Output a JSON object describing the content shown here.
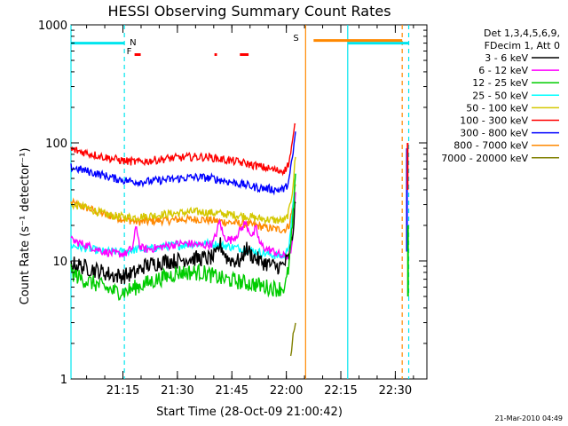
{
  "chart_data": {
    "type": "line",
    "title": "HESSI Observing Summary Count Rates",
    "xlabel": "Start Time (28-Oct-09 21:00:42)",
    "ylabel": "Count Rate (s⁻¹ detector⁻¹)",
    "x_unit": "minutes after 21:00:42",
    "x_range": [
      0,
      98
    ],
    "ylim": [
      1,
      1000
    ],
    "y_scale": "log",
    "grid": false,
    "x_ticks": [
      {
        "x": 14.3,
        "label": "21:15"
      },
      {
        "x": 29.3,
        "label": "21:30"
      },
      {
        "x": 44.3,
        "label": "21:45"
      },
      {
        "x": 59.3,
        "label": "22:00"
      },
      {
        "x": 74.3,
        "label": "22:15"
      },
      {
        "x": 89.3,
        "label": "22:30"
      }
    ],
    "y_ticks": [
      {
        "y": 1,
        "label": "1"
      },
      {
        "y": 10,
        "label": "10"
      },
      {
        "y": 100,
        "label": "100"
      },
      {
        "y": 1000,
        "label": "1000"
      }
    ],
    "legend_title": "Det 1,3,4,5,6,9,",
    "legend_subtitle": "FDecim 1, Att 0",
    "legend_position": "right",
    "series": [
      {
        "name": "3 - 6 keV",
        "color": "#000000",
        "x": [
          0,
          3,
          6,
          9,
          12,
          15,
          18,
          20,
          23,
          26,
          29,
          32,
          35,
          38,
          40,
          41,
          43,
          45,
          47,
          48,
          50,
          52,
          54,
          56,
          58,
          60,
          61,
          62
        ],
        "y": [
          9.5,
          9,
          8.5,
          8,
          7.5,
          7.5,
          8,
          9,
          9.5,
          10,
          10,
          10.5,
          10.5,
          10.5,
          11,
          14,
          10.5,
          10,
          10,
          13,
          11,
          10,
          9.5,
          9,
          9,
          10.5,
          16,
          40
        ]
      },
      {
        "name": "6 - 12 keV",
        "color": "#ff00ff",
        "x": [
          0,
          3,
          6,
          9,
          12,
          15,
          17,
          18,
          19,
          21,
          24,
          27,
          30,
          33,
          36,
          39,
          40,
          41,
          42,
          44,
          46,
          48,
          50,
          51,
          52,
          54,
          56,
          58,
          60,
          61,
          62
        ],
        "y": [
          15,
          14,
          13,
          12,
          11.5,
          11.5,
          13,
          20,
          13,
          12.5,
          13,
          13.5,
          14,
          14,
          13.5,
          14,
          17,
          22,
          16,
          15,
          17,
          21,
          16,
          19,
          14,
          12.5,
          12,
          11,
          11,
          14,
          45
        ]
      },
      {
        "name": "12 - 25 keV",
        "color": "#00cc00",
        "x": [
          0,
          3,
          6,
          9,
          12,
          15,
          18,
          21,
          24,
          27,
          30,
          33,
          36,
          39,
          42,
          45,
          48,
          51,
          54,
          57,
          59,
          60,
          61,
          62
        ],
        "y": [
          8,
          7,
          6.5,
          6,
          5.5,
          5.5,
          6,
          6.5,
          7,
          7.5,
          8,
          8,
          8,
          7.5,
          7,
          6.8,
          6.5,
          6.3,
          6,
          5.8,
          6,
          9,
          20,
          60
        ]
      },
      {
        "name": "25 - 50 keV",
        "color": "#00ffff",
        "x": [
          0,
          3,
          6,
          9,
          12,
          15,
          18,
          21,
          24,
          27,
          30,
          33,
          36,
          39,
          42,
          45,
          48,
          51,
          54,
          57,
          59,
          60,
          61,
          62
        ],
        "y": [
          13.5,
          13,
          12.5,
          12,
          12,
          12,
          12.5,
          12.5,
          13,
          13.5,
          13.5,
          14,
          14,
          14,
          13.5,
          13,
          12.5,
          12,
          11.5,
          11,
          11,
          14,
          25,
          70
        ]
      },
      {
        "name": "50 - 100 keV",
        "color": "#d4c800",
        "x": [
          0,
          3,
          6,
          9,
          12,
          15,
          18,
          21,
          24,
          27,
          30,
          33,
          36,
          39,
          42,
          45,
          48,
          51,
          54,
          57,
          59,
          60,
          61,
          62
        ],
        "y": [
          30,
          29,
          27,
          25,
          24,
          23.5,
          23.5,
          24,
          24.5,
          25,
          25.5,
          26,
          26,
          25.5,
          25,
          24.5,
          24,
          23,
          22.5,
          22,
          22,
          26,
          40,
          90
        ]
      },
      {
        "name": "100 - 300 keV",
        "color": "#ff0000",
        "x": [
          0,
          3,
          6,
          9,
          12,
          15,
          18,
          21,
          24,
          27,
          30,
          33,
          36,
          39,
          42,
          45,
          48,
          51,
          54,
          57,
          59,
          60,
          61,
          62
        ],
        "y": [
          88,
          84,
          80,
          76,
          73,
          70,
          69,
          70,
          72,
          74,
          75,
          76,
          76,
          75,
          72,
          70,
          67,
          64,
          61,
          58,
          59,
          68,
          100,
          170
        ]
      },
      {
        "name": "300 - 800 keV",
        "color": "#0000ff",
        "x": [
          0,
          3,
          6,
          9,
          12,
          15,
          18,
          21,
          24,
          27,
          30,
          33,
          36,
          39,
          42,
          45,
          48,
          51,
          54,
          57,
          59,
          60,
          61,
          62
        ],
        "y": [
          62,
          59,
          56,
          53,
          50,
          48,
          47,
          47,
          48,
          49,
          50,
          51,
          51,
          50,
          48,
          46,
          44,
          42,
          41,
          40,
          41,
          48,
          75,
          140
        ]
      },
      {
        "name": "800 - 7000 keV",
        "color": "#ff8800",
        "x": [
          0,
          3,
          6,
          9,
          12,
          15,
          18,
          21,
          24,
          27,
          30,
          33,
          36,
          39,
          42,
          45,
          48,
          51,
          54,
          57,
          59,
          60,
          61,
          62
        ],
        "y": [
          31,
          29,
          27,
          25,
          23.5,
          22.5,
          21.5,
          21.5,
          22,
          22,
          22.5,
          22.5,
          22.5,
          22,
          21.5,
          21,
          20.5,
          20,
          19,
          18.5,
          18.5,
          20,
          28,
          50
        ]
      },
      {
        "name": "7000 - 20000 keV",
        "color": "#808000",
        "x": [
          60.5,
          61,
          61.5,
          62
        ],
        "y": [
          1.5,
          2.2,
          2.8,
          3
        ]
      }
    ],
    "right_fragments": [
      {
        "color": "#0000ff",
        "x": [
          92.5,
          92.5
        ],
        "y": [
          12,
          90
        ]
      },
      {
        "color": "#ff0000",
        "x": [
          92.7,
          92.7
        ],
        "y": [
          40,
          100
        ]
      },
      {
        "color": "#00cc00",
        "x": [
          92.8,
          92.8
        ],
        "y": [
          5,
          20
        ]
      }
    ],
    "annotations": {
      "saa_level": 700,
      "night_level": 700,
      "night_segments": [
        [
          0,
          14.7
        ],
        [
          76.2,
          93
        ]
      ],
      "saa_segment": [
        66.8,
        91.2
      ],
      "flare_marks": [
        [
          17.5,
          19.2
        ],
        [
          39.5,
          40.2
        ],
        [
          46.5,
          48.9
        ]
      ],
      "flare_level": 560,
      "night_boundaries_solid": [
        0,
        76.2
      ],
      "night_boundaries_dashed": [
        14.7,
        93
      ],
      "saa_boundary_solid": 64.6,
      "saa_boundary_dashed": 91.2,
      "n_label": "N",
      "f_label": "F",
      "s_label": "S"
    }
  },
  "footer": {
    "timestamp": "21-Mar-2010 04:49"
  }
}
